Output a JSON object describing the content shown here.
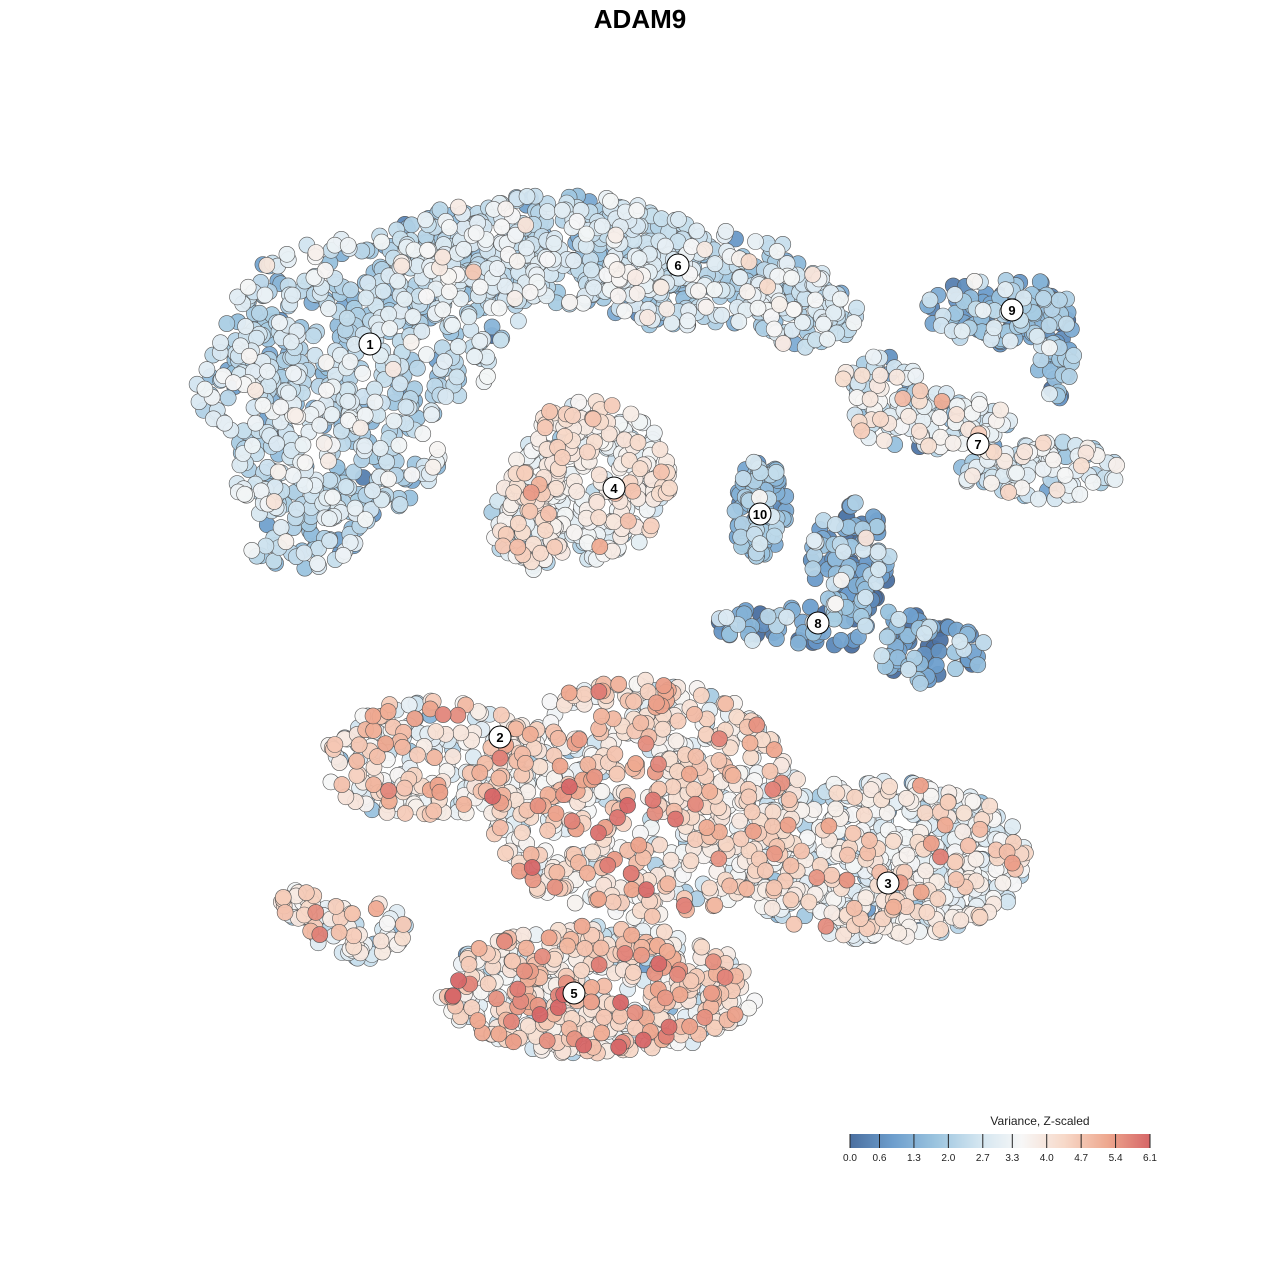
{
  "chart_data": {
    "type": "scatter",
    "title": "ADAM9",
    "xlabel": "",
    "ylabel": "",
    "legend": {
      "title": "Variance, Z-scaled",
      "placement": "bottom-right",
      "range": [
        0.0,
        6.1
      ],
      "ticks": [
        "0.0",
        "0.6",
        "1.3",
        "2.0",
        "2.7",
        "3.3",
        "4.0",
        "4.7",
        "5.4",
        "6.1"
      ],
      "colors": [
        "#4a6fa0",
        "#6d9ecd",
        "#9bc4df",
        "#d2e5f0",
        "#f7f7f7",
        "#f7d9c9",
        "#eea88f",
        "#d66667"
      ]
    },
    "clusters": [
      {
        "id": "1",
        "label_x": 370,
        "label_y": 344,
        "mean": 2.3,
        "spread": 0.7
      },
      {
        "id": "2",
        "label_x": 500,
        "label_y": 737,
        "mean": 3.6,
        "spread": 1.0
      },
      {
        "id": "3",
        "label_x": 888,
        "label_y": 883,
        "mean": 3.2,
        "spread": 0.9
      },
      {
        "id": "4",
        "label_x": 614,
        "label_y": 488,
        "mean": 3.5,
        "spread": 0.7
      },
      {
        "id": "5",
        "label_x": 574,
        "label_y": 993,
        "mean": 3.9,
        "spread": 0.9
      },
      {
        "id": "6",
        "label_x": 678,
        "label_y": 265,
        "mean": 2.4,
        "spread": 0.7
      },
      {
        "id": "7",
        "label_x": 978,
        "label_y": 444,
        "mean": 2.7,
        "spread": 0.9
      },
      {
        "id": "8",
        "label_x": 818,
        "label_y": 623,
        "mean": 1.3,
        "spread": 0.9
      },
      {
        "id": "9",
        "label_x": 1012,
        "label_y": 310,
        "mean": 1.5,
        "spread": 0.8
      },
      {
        "id": "10",
        "label_x": 760,
        "label_y": 514,
        "mean": 1.6,
        "spread": 0.6
      }
    ]
  }
}
